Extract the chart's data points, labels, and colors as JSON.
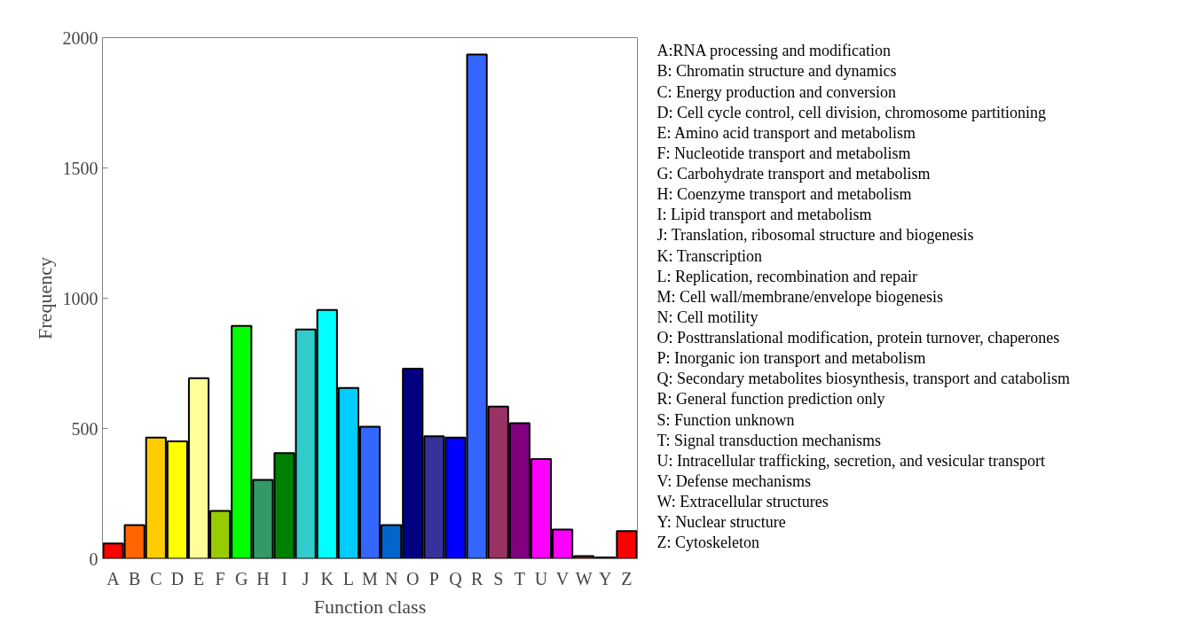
{
  "chart_data": {
    "type": "bar",
    "xlabel": "Function class",
    "ylabel": "Frequency",
    "categories": [
      "A",
      "B",
      "C",
      "D",
      "E",
      "F",
      "G",
      "H",
      "I",
      "J",
      "K",
      "L",
      "M",
      "N",
      "O",
      "P",
      "Q",
      "R",
      "S",
      "T",
      "U",
      "V",
      "W",
      "Y",
      "Z"
    ],
    "values": [
      59,
      129,
      465,
      451,
      693,
      184,
      894,
      303,
      406,
      880,
      955,
      656,
      507,
      129,
      730,
      470,
      465,
      1935,
      584,
      520,
      383,
      112,
      10,
      5,
      106
    ],
    "colors": [
      "#ff0000",
      "#ff6600",
      "#ffcc00",
      "#ffff00",
      "#ffff99",
      "#99cc00",
      "#00ff00",
      "#339966",
      "#008000",
      "#33cccc",
      "#00ffff",
      "#00ccff",
      "#3366ff",
      "#0066cc",
      "#000080",
      "#333399",
      "#0000ff",
      "#3366ff",
      "#993366",
      "#800080",
      "#ff00ff",
      "#ff00ff",
      "#993300",
      "#800000",
      "#ff0000"
    ],
    "ylim": [
      0,
      2000
    ],
    "yticks": [
      0,
      500,
      1000,
      1500,
      2000
    ],
    "grid": false,
    "annotations": [
      "A:RNA processing and modification",
      "B: Chromatin structure and dynamics",
      "C: Energy production and conversion",
      "D: Cell cycle control, cell division, chromosome partitioning",
      "E: Amino acid transport and metabolism",
      "F: Nucleotide transport and metabolism",
      "G: Carbohydrate transport and metabolism",
      "H: Coenzyme transport and metabolism",
      "I: Lipid transport and metabolism",
      "J: Translation, ribosomal structure and biogenesis",
      "K: Transcription",
      "L: Replication, recombination and repair",
      "M: Cell wall/membrane/envelope biogenesis",
      "N: Cell motility",
      "O: Posttranslational modification, protein turnover, chaperones",
      "P: Inorganic ion transport and metabolism",
      "Q: Secondary metabolites biosynthesis, transport and catabolism",
      "R: General function prediction only",
      "S: Function unknown",
      "T: Signal transduction mechanisms",
      "U: Intracellular trafficking, secretion, and vesicular transport",
      "V: Defense mechanisms",
      "W: Extracellular structures",
      "Y: Nuclear structure",
      "Z: Cytoskeleton"
    ]
  }
}
